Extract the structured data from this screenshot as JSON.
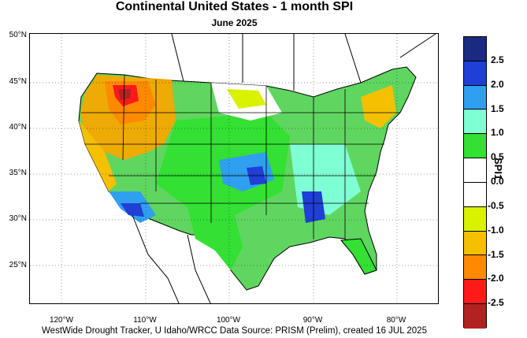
{
  "title": "Continental United States - 1 month SPI",
  "subtitle": "June 2025",
  "credit": "WestWide Drought Tracker, U Idaho/WRCC Data Source: PRISM (Prelim), created 16 JUL 2025",
  "latitude_labels": [
    "50°N",
    "45°N",
    "40°N",
    "35°N",
    "30°N",
    "25°N"
  ],
  "longitude_labels": [
    "120°W",
    "110°W",
    "100°W",
    "90°W",
    "80°W"
  ],
  "colorbar": {
    "title": "SPI1",
    "tick_labels": [
      "2.5",
      "2.0",
      "1.5",
      "1.0",
      "0.5",
      "0.0",
      "-0.5",
      "-1.0",
      "-1.5",
      "-2.0",
      "-2.5"
    ],
    "colors": [
      "#1a2a80",
      "#1f3fd6",
      "#2f9ff0",
      "#7fffd4",
      "#33e033",
      "#ffffff",
      "#ffffff",
      "#d9f200",
      "#f5c000",
      "#ff8a00",
      "#ff1a1a",
      "#b22222"
    ]
  }
}
